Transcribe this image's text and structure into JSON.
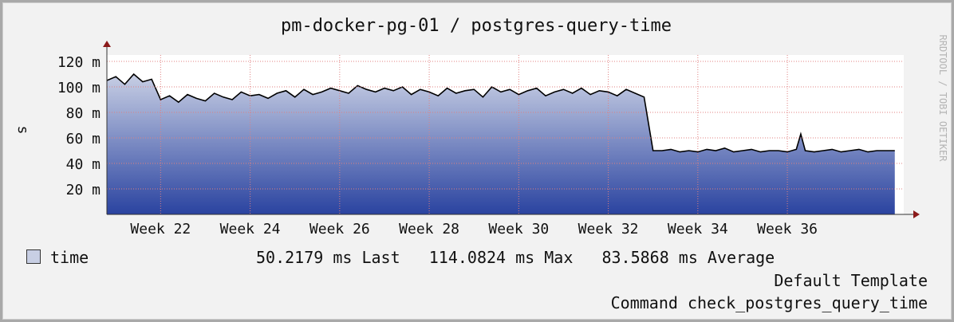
{
  "title": "pm-docker-pg-01 / postgres-query-time",
  "watermark": "RRDTOOL / TOBI OETIKER",
  "legend": {
    "series_name": "time",
    "stats_text": "50.2179 ms Last   114.0824 ms Max   83.5868 ms Average"
  },
  "footer": {
    "template": "Default Template",
    "command": "Command check_postgres_query_time"
  },
  "colors": {
    "fill_top": "#c8cfe4",
    "fill_bottom": "#2a43a0",
    "line": "#000000",
    "grid": "#e08080",
    "axis_arrow": "#8b1a1a",
    "background": "#f2f2f2"
  },
  "chart_data": {
    "type": "area",
    "title": "pm-docker-pg-01 / postgres-query-time",
    "ylabel": "s",
    "xlabel": "",
    "ylim": [
      0,
      0.125
    ],
    "y_ticks": [
      {
        "value": 0.02,
        "label": "20 m"
      },
      {
        "value": 0.04,
        "label": "40 m"
      },
      {
        "value": 0.06,
        "label": "60 m"
      },
      {
        "value": 0.08,
        "label": "80 m"
      },
      {
        "value": 0.1,
        "label": "100 m"
      },
      {
        "value": 0.12,
        "label": "120 m"
      }
    ],
    "xlim": [
      20.8,
      38.6
    ],
    "x_ticks": [
      {
        "value": 22,
        "label": "Week 22"
      },
      {
        "value": 24,
        "label": "Week 24"
      },
      {
        "value": 26,
        "label": "Week 26"
      },
      {
        "value": 28,
        "label": "Week 28"
      },
      {
        "value": 30,
        "label": "Week 30"
      },
      {
        "value": 32,
        "label": "Week 32"
      },
      {
        "value": 34,
        "label": "Week 34"
      },
      {
        "value": 36,
        "label": "Week 36"
      }
    ],
    "grid": true,
    "series": [
      {
        "name": "time",
        "x": [
          20.8,
          21.0,
          21.2,
          21.4,
          21.6,
          21.8,
          22.0,
          22.2,
          22.4,
          22.6,
          22.8,
          23.0,
          23.2,
          23.4,
          23.6,
          23.8,
          24.0,
          24.2,
          24.4,
          24.6,
          24.8,
          25.0,
          25.2,
          25.4,
          25.6,
          25.8,
          26.0,
          26.2,
          26.4,
          26.6,
          26.8,
          27.0,
          27.2,
          27.4,
          27.6,
          27.8,
          28.0,
          28.2,
          28.4,
          28.6,
          28.8,
          29.0,
          29.2,
          29.4,
          29.6,
          29.8,
          30.0,
          30.2,
          30.4,
          30.6,
          30.8,
          31.0,
          31.2,
          31.4,
          31.6,
          31.8,
          32.0,
          32.2,
          32.4,
          32.6,
          32.8,
          33.0,
          33.2,
          33.4,
          33.6,
          33.8,
          34.0,
          34.2,
          34.4,
          34.6,
          34.8,
          35.0,
          35.2,
          35.4,
          35.6,
          35.8,
          36.0,
          36.2,
          36.3,
          36.4,
          36.6,
          36.8,
          37.0,
          37.2,
          37.4,
          37.6,
          37.8,
          38.0,
          38.2,
          38.4
        ],
        "y": [
          0.105,
          0.108,
          0.102,
          0.11,
          0.104,
          0.106,
          0.09,
          0.093,
          0.088,
          0.094,
          0.091,
          0.089,
          0.095,
          0.092,
          0.09,
          0.096,
          0.093,
          0.094,
          0.091,
          0.095,
          0.097,
          0.092,
          0.098,
          0.094,
          0.096,
          0.099,
          0.097,
          0.095,
          0.101,
          0.098,
          0.096,
          0.099,
          0.097,
          0.1,
          0.094,
          0.098,
          0.096,
          0.093,
          0.099,
          0.095,
          0.097,
          0.098,
          0.092,
          0.1,
          0.096,
          0.098,
          0.094,
          0.097,
          0.099,
          0.093,
          0.096,
          0.098,
          0.095,
          0.099,
          0.094,
          0.097,
          0.096,
          0.093,
          0.098,
          0.095,
          0.092,
          0.05,
          0.05,
          0.051,
          0.049,
          0.05,
          0.049,
          0.051,
          0.05,
          0.052,
          0.049,
          0.05,
          0.051,
          0.049,
          0.05,
          0.05,
          0.049,
          0.051,
          0.063,
          0.05,
          0.049,
          0.05,
          0.051,
          0.049,
          0.05,
          0.051,
          0.049,
          0.05,
          0.05,
          0.05
        ]
      }
    ]
  }
}
